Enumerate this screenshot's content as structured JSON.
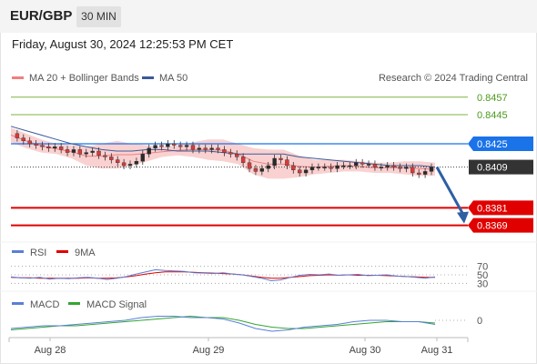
{
  "header": {
    "symbol": "EUR/GBP",
    "timeframe": "30 MIN",
    "datetime": "Friday, August 30, 2024 12:25:53 PM CET"
  },
  "colors": {
    "candle_up": "#2a2a2a",
    "candle_down": "#d93a3a",
    "bollinger_fill": "#f8c9c9",
    "ma20": "#f08080",
    "ma50": "#3a5a9a",
    "resistance": "#7cb342",
    "pivot": "#1a73e8",
    "support": "#e00000",
    "current": "#333333",
    "arrow": "#2e5fa3",
    "rsi": "#5a7fd6",
    "rsi_ma": "#e00000",
    "macd": "#5a7fd6",
    "macd_signal": "#33a532"
  },
  "chart_data": [
    {
      "type": "line",
      "name": "price",
      "legend": [
        {
          "label": "MA 20 + Bollinger Bands",
          "color": "#f08080"
        },
        {
          "label": "MA 50",
          "color": "#3a5a9a"
        }
      ],
      "watermark": "Research © 2024 Trading Central",
      "ylim": [
        0.836,
        0.8465
      ],
      "x_ticks": [
        "Aug 28",
        "Aug 29",
        "Aug 30",
        "Aug 31"
      ],
      "levels": [
        {
          "value": 0.8457,
          "label": "0.8457",
          "role": "resistance"
        },
        {
          "value": 0.8445,
          "label": "0.8445",
          "role": "resistance"
        },
        {
          "value": 0.8425,
          "label": "0.8425",
          "role": "pivot"
        },
        {
          "value": 0.8409,
          "label": "0.8409",
          "role": "current"
        },
        {
          "value": 0.8381,
          "label": "0.8381",
          "role": "support"
        },
        {
          "value": 0.8369,
          "label": "0.8369",
          "role": "support"
        }
      ],
      "close_series": [
        0.8432,
        0.8429,
        0.8427,
        0.8425,
        0.8424,
        0.8423,
        0.8422,
        0.8423,
        0.8421,
        0.8419,
        0.8421,
        0.8418,
        0.8419,
        0.842,
        0.8417,
        0.8416,
        0.8414,
        0.8412,
        0.841,
        0.8411,
        0.8413,
        0.8418,
        0.8422,
        0.8424,
        0.8423,
        0.8425,
        0.8424,
        0.8423,
        0.8424,
        0.8421,
        0.8422,
        0.8421,
        0.8422,
        0.8421,
        0.8419,
        0.8418,
        0.8416,
        0.8412,
        0.8408,
        0.8406,
        0.8408,
        0.841,
        0.8415,
        0.8414,
        0.841,
        0.8407,
        0.8405,
        0.8407,
        0.8409,
        0.8409,
        0.8409,
        0.8408,
        0.841,
        0.841,
        0.841,
        0.8412,
        0.8411,
        0.8411,
        0.8409,
        0.8409,
        0.841,
        0.8409,
        0.8408,
        0.8409,
        0.8405,
        0.8404,
        0.8406,
        0.8409
      ],
      "ma50_series": [
        0.8437,
        0.8434,
        0.8431,
        0.8428,
        0.8425,
        0.8423,
        0.8421,
        0.842,
        0.842,
        0.8421,
        0.8421,
        0.842,
        0.842,
        0.842,
        0.8419,
        0.8418,
        0.8418,
        0.8418,
        0.8418,
        0.8416,
        0.8415,
        0.8414,
        0.8413,
        0.8412,
        0.8411,
        0.841,
        0.841,
        0.841,
        0.8409
      ],
      "bollinger_upper": [
        0.8436,
        0.8432,
        0.8428,
        0.8425,
        0.8424,
        0.8423,
        0.8425,
        0.8427,
        0.8425,
        0.8424,
        0.8423,
        0.8424,
        0.8426,
        0.8428,
        0.8428,
        0.8425,
        0.8422,
        0.8421,
        0.8421,
        0.8417,
        0.8414,
        0.8414,
        0.8414,
        0.8413,
        0.8412,
        0.8412,
        0.8413,
        0.8413,
        0.8412
      ],
      "bollinger_lower": [
        0.8426,
        0.8422,
        0.8419,
        0.8418,
        0.8415,
        0.841,
        0.8408,
        0.8408,
        0.841,
        0.8413,
        0.8416,
        0.8417,
        0.8416,
        0.8414,
        0.8413,
        0.8411,
        0.8404,
        0.8401,
        0.8401,
        0.8402,
        0.8404,
        0.8405,
        0.8406,
        0.8406,
        0.8405,
        0.8405,
        0.8404,
        0.8403,
        0.8403
      ],
      "forecast": {
        "from": 0.8409,
        "to": 0.8369
      }
    },
    {
      "type": "line",
      "name": "RSI",
      "legend": [
        {
          "label": "RSI",
          "color": "#5a7fd6"
        },
        {
          "label": "9MA",
          "color": "#e00000"
        }
      ],
      "levels": [
        70,
        50,
        30
      ],
      "level_labels": [
        "70",
        "50",
        "30"
      ],
      "ylim": [
        20,
        80
      ],
      "rsi_series": [
        45,
        43,
        42,
        44,
        40,
        42,
        41,
        43,
        44,
        42,
        39,
        42,
        46,
        52,
        57,
        62,
        60,
        59,
        58,
        55,
        54,
        53,
        55,
        52,
        50,
        46,
        42,
        36,
        38,
        44,
        49,
        51,
        50,
        52,
        49,
        50,
        51,
        48,
        49,
        50,
        47,
        46,
        44,
        42,
        45
      ],
      "rsi_ma_series": [
        44,
        43,
        43,
        42,
        42,
        42,
        42,
        42,
        43,
        42,
        42,
        43,
        45,
        48,
        52,
        55,
        57,
        57,
        57,
        56,
        55,
        54,
        53,
        52,
        50,
        47,
        44,
        42,
        42,
        44,
        46,
        48,
        49,
        50,
        49,
        50,
        49,
        49,
        49,
        48,
        47,
        46,
        45,
        44,
        44
      ]
    },
    {
      "type": "line",
      "name": "MACD",
      "legend": [
        {
          "label": "MACD",
          "color": "#5a7fd6"
        },
        {
          "label": "MACD Signal",
          "color": "#33a532"
        }
      ],
      "zero_label": "0",
      "ylim": [
        -0.0012,
        0.0006
      ],
      "macd_series": [
        -0.0006,
        -0.0005,
        -0.0004,
        -0.0004,
        -0.0003,
        -0.0002,
        -0.0001,
        0.0,
        0.0002,
        0.0003,
        0.0003,
        0.0002,
        0.0002,
        0.0001,
        -0.0002,
        -0.0006,
        -0.0008,
        -0.0007,
        -0.0005,
        -0.0004,
        -0.0003,
        -0.0001,
        0.0,
        0.0,
        -0.0001,
        -0.0001,
        -0.0003
      ],
      "signal_series": [
        -0.0007,
        -0.0006,
        -0.0005,
        -0.0004,
        -0.0004,
        -0.0003,
        -0.0002,
        -0.0001,
        0.0,
        0.0001,
        0.0002,
        0.0003,
        0.0002,
        0.0002,
        0.0,
        -0.0003,
        -0.0005,
        -0.0006,
        -0.0006,
        -0.0005,
        -0.0004,
        -0.0003,
        -0.0002,
        -0.0001,
        -0.0001,
        -0.0001,
        -0.0002
      ]
    }
  ]
}
